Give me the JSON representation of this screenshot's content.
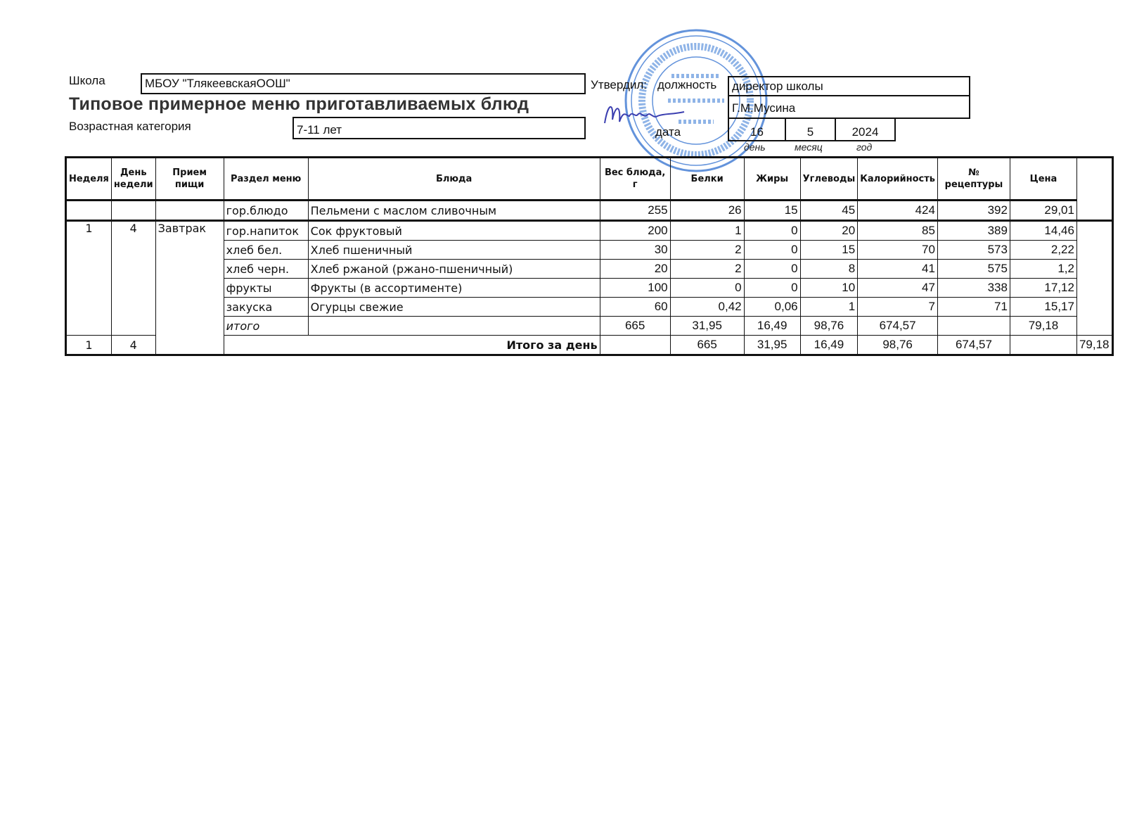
{
  "header": {
    "school_label": "Школа",
    "school_value": "МБОУ \"ТлякеевскаяООШ\"",
    "title": "Типовое примерное меню приготавливаемых блюд",
    "age_label": "Возрастная категория",
    "age_value": "7-11 лет",
    "approved_label": "Утвердил:",
    "position_label": "должность",
    "position_value": "директор школы",
    "name_value": "Г.М.Мусина",
    "date_label": "дата",
    "date_day": "16",
    "date_month": "5",
    "date_year": "2024",
    "day_caption": "день",
    "month_caption": "месяц",
    "year_caption": "год"
  },
  "stamp": {
    "text": "МБОУ «Тлякеевская ООШ»",
    "color": "#2f6fd0"
  },
  "table": {
    "columns": [
      "Неделя",
      "День недели",
      "Прием пищи",
      "Раздел меню",
      "Блюда",
      "Вес блюда, г",
      "Белки",
      "Жиры",
      "Углеводы",
      "Калорийность",
      "№ рецептуры",
      "Цена"
    ],
    "week": "1",
    "day": "4",
    "meal": "Завтрак",
    "rows": [
      {
        "section": "гор.блюдо",
        "dish": "Пельмени с маслом сливочным",
        "weight": "255",
        "protein": "26",
        "fat": "15",
        "carbs": "45",
        "kcal": "424",
        "recipe": "392",
        "price": "29,01"
      },
      {
        "section": "гор.напиток",
        "dish": "Сок фруктовый",
        "weight": "200",
        "protein": "1",
        "fat": "0",
        "carbs": "20",
        "kcal": "85",
        "recipe": "389",
        "price": "14,46"
      },
      {
        "section": "хлеб бел.",
        "dish": "Хлеб пшеничный",
        "weight": "30",
        "protein": "2",
        "fat": "0",
        "carbs": "15",
        "kcal": "70",
        "recipe": "573",
        "price": "2,22"
      },
      {
        "section": "хлеб черн.",
        "dish": "Хлеб ржаной (ржано-пшеничный)",
        "weight": "20",
        "protein": "2",
        "fat": "0",
        "carbs": "8",
        "kcal": "41",
        "recipe": "575",
        "price": "1,2"
      },
      {
        "section": "фрукты",
        "dish": "Фрукты (в ассортименте)",
        "weight": "100",
        "protein": "0",
        "fat": "0",
        "carbs": "10",
        "kcal": "47",
        "recipe": "338",
        "price": "17,12"
      },
      {
        "section": "закуска",
        "dish": "Огурцы свежие",
        "weight": "60",
        "protein": "0,42",
        "fat": "0,06",
        "carbs": "1",
        "kcal": "7",
        "recipe": "71",
        "price": "15,17"
      }
    ],
    "subtotal": {
      "label": "итого",
      "weight": "665",
      "protein": "31,95",
      "fat": "16,49",
      "carbs": "98,76",
      "kcal": "674,57",
      "price": "79,18"
    },
    "day_total": {
      "week": "1",
      "day": "4",
      "label": "Итого за день",
      "weight": "665",
      "protein": "31,95",
      "fat": "16,49",
      "carbs": "98,76",
      "kcal": "674,57",
      "price": "79,18"
    }
  }
}
